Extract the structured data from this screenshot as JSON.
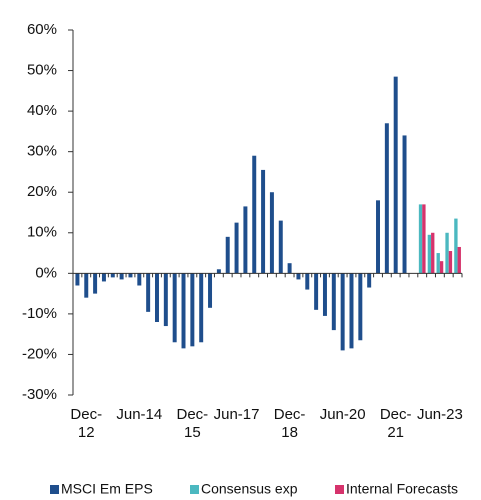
{
  "chart_data": {
    "type": "bar",
    "categories": [
      null,
      "Dec-\n12",
      null,
      null,
      null,
      null,
      null,
      "Jun-14",
      null,
      null,
      null,
      null,
      null,
      "Dec-\n15",
      null,
      null,
      null,
      null,
      "Jun-17",
      null,
      null,
      null,
      null,
      null,
      "Dec-\n18",
      null,
      null,
      null,
      null,
      null,
      "Jun-20",
      null,
      null,
      null,
      null,
      null,
      "Dec-\n21",
      null,
      null,
      null,
      null,
      "Jun-23",
      null,
      null
    ],
    "series": [
      {
        "name": "MSCI Em EPS",
        "color": "#1f4e8c",
        "values": [
          -3,
          -6,
          -5,
          -2,
          -1,
          -1.5,
          -1,
          -3,
          -9.5,
          -12,
          -13,
          -17,
          -18.5,
          -18,
          -17,
          -8.5,
          1,
          9,
          12.5,
          16.5,
          29,
          25.5,
          20,
          13,
          2.5,
          -1.5,
          -4,
          -9,
          -10.5,
          -14,
          -19,
          -18.5,
          -16.5,
          -3.5,
          18,
          37,
          48.5,
          34,
          null,
          null,
          null,
          null,
          null,
          null
        ]
      },
      {
        "name": "Consensus exp",
        "color": "#4bb8c0",
        "values": [
          null,
          null,
          null,
          null,
          null,
          null,
          null,
          null,
          null,
          null,
          null,
          null,
          null,
          null,
          null,
          null,
          null,
          null,
          null,
          null,
          null,
          null,
          null,
          null,
          null,
          null,
          null,
          null,
          null,
          null,
          null,
          null,
          null,
          null,
          null,
          null,
          null,
          null,
          null,
          17,
          9.5,
          5,
          10,
          13.5
        ]
      },
      {
        "name": "Internal Forecasts",
        "color": "#d6336c",
        "values": [
          null,
          null,
          null,
          null,
          null,
          null,
          null,
          null,
          null,
          null,
          null,
          null,
          null,
          null,
          null,
          null,
          null,
          null,
          null,
          null,
          null,
          null,
          null,
          null,
          null,
          null,
          null,
          null,
          null,
          null,
          null,
          null,
          null,
          null,
          null,
          null,
          null,
          null,
          null,
          17,
          10,
          3,
          5.5,
          6.5
        ]
      }
    ],
    "ylim": [
      -30,
      60
    ],
    "yticks": [
      {
        "value": -30,
        "label": "-30%"
      },
      {
        "value": -20,
        "label": "-20%"
      },
      {
        "value": -10,
        "label": "-10%"
      },
      {
        "value": 0,
        "label": "0%"
      },
      {
        "value": 10,
        "label": "10%"
      },
      {
        "value": 20,
        "label": "20%"
      },
      {
        "value": 30,
        "label": "30%"
      },
      {
        "value": 40,
        "label": "40%"
      },
      {
        "value": 50,
        "label": "50%"
      },
      {
        "value": 60,
        "label": "60%"
      }
    ]
  }
}
